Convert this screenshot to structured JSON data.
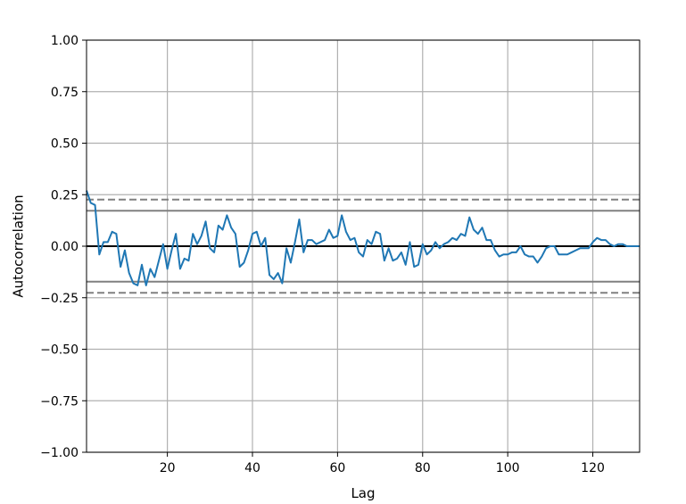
{
  "chart_data": {
    "type": "line",
    "title": "",
    "xlabel": "Lag",
    "ylabel": "Autocorrelation",
    "xlim": [
      1,
      131
    ],
    "ylim": [
      -1.0,
      1.0
    ],
    "grid": true,
    "x_ticks": [
      20,
      40,
      60,
      80,
      100,
      120
    ],
    "y_ticks": [
      -1.0,
      -0.75,
      -0.5,
      -0.25,
      0.0,
      0.25,
      0.5,
      0.75,
      1.0
    ],
    "x_tick_labels": [
      "20",
      "40",
      "60",
      "80",
      "100",
      "120"
    ],
    "y_tick_labels": [
      "−1.00",
      "−0.75",
      "−0.50",
      "−0.25",
      "0.00",
      "0.25",
      "0.50",
      "0.75",
      "1.00"
    ],
    "reference_lines": {
      "zero": 0.0,
      "confidence_95": 0.172,
      "confidence_99": 0.226
    },
    "colors": {
      "series": "#1f77b4",
      "zero_line": "#000000",
      "confidence": "#808080",
      "grid": "#b0b0b0"
    },
    "series": [
      {
        "x": [
          1,
          2,
          3,
          4,
          5,
          6,
          7,
          8,
          9,
          10,
          11,
          12,
          13,
          14,
          15,
          16,
          17,
          18,
          19,
          20,
          21,
          22,
          23,
          24,
          25,
          26,
          27,
          28,
          29,
          30,
          31,
          32,
          33,
          34,
          35,
          36,
          37,
          38,
          39,
          40,
          41,
          42,
          43,
          44,
          45,
          46,
          47,
          48,
          49,
          50,
          51,
          52,
          53,
          54,
          55,
          56,
          57,
          58,
          59,
          60,
          61,
          62,
          63,
          64,
          65,
          66,
          67,
          68,
          69,
          70,
          71,
          72,
          73,
          74,
          75,
          76,
          77,
          78,
          79,
          80,
          81,
          82,
          83,
          84,
          85,
          86,
          87,
          88,
          89,
          90,
          91,
          92,
          93,
          94,
          95,
          96,
          97,
          98,
          99,
          100,
          101,
          102,
          103,
          104,
          105,
          106,
          107,
          108,
          109,
          110,
          111,
          112,
          113,
          114,
          115,
          116,
          117,
          118,
          119,
          120,
          121,
          122,
          123,
          124,
          125,
          126,
          127,
          128,
          129,
          130,
          131
        ],
        "values": [
          0.27,
          0.21,
          0.2,
          -0.04,
          0.02,
          0.02,
          0.07,
          0.06,
          -0.1,
          -0.02,
          -0.13,
          -0.18,
          -0.19,
          -0.09,
          -0.19,
          -0.11,
          -0.15,
          -0.07,
          0.01,
          -0.11,
          -0.02,
          0.06,
          -0.11,
          -0.06,
          -0.07,
          0.06,
          0.01,
          0.05,
          0.12,
          -0.01,
          -0.03,
          0.1,
          0.08,
          0.15,
          0.09,
          0.06,
          -0.1,
          -0.08,
          -0.02,
          0.06,
          0.07,
          0.0,
          0.04,
          -0.14,
          -0.16,
          -0.13,
          -0.18,
          -0.01,
          -0.08,
          0.02,
          0.13,
          -0.03,
          0.03,
          0.03,
          0.01,
          0.02,
          0.03,
          0.08,
          0.04,
          0.05,
          0.15,
          0.07,
          0.03,
          0.04,
          -0.03,
          -0.05,
          0.03,
          0.01,
          0.07,
          0.06,
          -0.07,
          -0.01,
          -0.07,
          -0.06,
          -0.03,
          -0.09,
          0.02,
          -0.1,
          -0.09,
          0.01,
          -0.04,
          -0.02,
          0.02,
          -0.01,
          0.01,
          0.02,
          0.04,
          0.03,
          0.06,
          0.05,
          0.14,
          0.08,
          0.06,
          0.09,
          0.03,
          0.03,
          -0.02,
          -0.05,
          -0.04,
          -0.04,
          -0.03,
          -0.03,
          0.0,
          -0.04,
          -0.05,
          -0.05,
          -0.08,
          -0.05,
          -0.01,
          0.0,
          0.0,
          -0.04,
          -0.04,
          -0.04,
          -0.03,
          -0.02,
          -0.01,
          -0.01,
          -0.01,
          0.02,
          0.04,
          0.03,
          0.03,
          0.01,
          0.0,
          0.01,
          0.01,
          0.0,
          0.0,
          0.0,
          0.0
        ]
      }
    ]
  }
}
